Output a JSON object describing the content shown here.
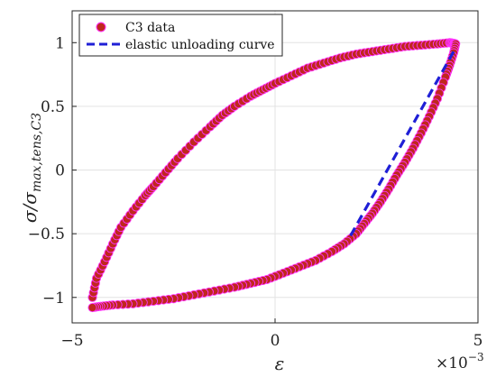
{
  "chart_data": {
    "type": "scatter",
    "xlabel": "ε",
    "ylabel": "σ/σmax,tens,C3",
    "ylabel_main": "σ/σ",
    "ylabel_sub": "max,tens,C3",
    "x_multiplier_label": "×10",
    "x_multiplier_exp": "−3",
    "xlim": [
      -5,
      5
    ],
    "ylim": [
      -1.2,
      1.25
    ],
    "x_ticks": [
      -5,
      0,
      5
    ],
    "x_tick_labels": [
      "−5",
      "0",
      "5"
    ],
    "y_ticks": [
      -1,
      -0.5,
      0,
      0.5,
      1
    ],
    "y_tick_labels": [
      "−1",
      "−0.5",
      "0",
      "0.5",
      "1"
    ],
    "grid": true,
    "legend_position": "top-left",
    "colors": {
      "data": "#c0271e",
      "data_halo": "#ff33ff",
      "line": "#1f1fd6"
    },
    "series": [
      {
        "name": "C3 data",
        "kind": "scatter",
        "x": [
          -4.5,
          -4.4,
          -4.2,
          -4.0,
          -3.8,
          -3.5,
          -3.2,
          -3.0,
          -2.7,
          -2.4,
          -2.0,
          -1.6,
          -1.3,
          -1.0,
          -0.6,
          -0.3,
          0.0,
          0.4,
          0.8,
          1.2,
          1.6,
          2.0,
          2.4,
          2.8,
          3.2,
          3.6,
          4.0,
          4.3,
          4.4,
          4.45,
          4.4,
          4.3,
          4.2,
          4.0,
          3.8,
          3.6,
          3.4,
          3.2,
          3.0,
          2.8,
          2.6,
          2.4,
          2.2,
          2.0,
          1.7,
          1.4,
          1.0,
          0.6,
          0.2,
          -0.2,
          -0.6,
          -1.0,
          -1.5,
          -2.0,
          -2.5,
          -3.0,
          -3.5,
          -4.0,
          -4.3,
          -4.5
        ],
        "y": [
          -1.0,
          -0.85,
          -0.72,
          -0.58,
          -0.45,
          -0.32,
          -0.2,
          -0.13,
          -0.02,
          0.09,
          0.22,
          0.34,
          0.43,
          0.5,
          0.58,
          0.63,
          0.68,
          0.74,
          0.8,
          0.84,
          0.88,
          0.91,
          0.93,
          0.95,
          0.97,
          0.98,
          0.99,
          1.0,
          0.995,
          0.99,
          0.92,
          0.82,
          0.73,
          0.56,
          0.42,
          0.29,
          0.17,
          0.06,
          -0.04,
          -0.15,
          -0.25,
          -0.34,
          -0.42,
          -0.5,
          -0.58,
          -0.64,
          -0.71,
          -0.76,
          -0.81,
          -0.86,
          -0.89,
          -0.92,
          -0.95,
          -0.98,
          -1.01,
          -1.03,
          -1.05,
          -1.06,
          -1.07,
          -1.08
        ]
      },
      {
        "name": "elastic unloading curve",
        "kind": "dashed-line",
        "x": [
          4.4,
          1.8
        ],
        "y": [
          0.93,
          -0.55
        ]
      }
    ]
  }
}
